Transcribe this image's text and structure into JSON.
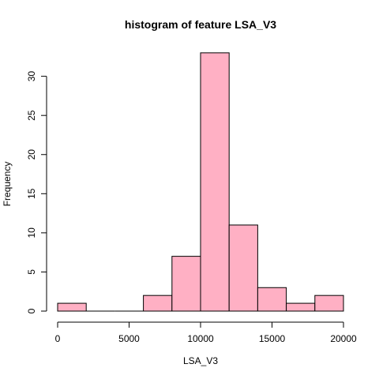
{
  "chart_data": {
    "type": "bar",
    "title": "histogram of feature LSA_V3",
    "xlabel": "LSA_V3",
    "ylabel": "Frequency",
    "bins": [
      {
        "start": 0,
        "end": 2000,
        "count": 1
      },
      {
        "start": 2000,
        "end": 4000,
        "count": 0
      },
      {
        "start": 4000,
        "end": 6000,
        "count": 0
      },
      {
        "start": 6000,
        "end": 8000,
        "count": 2
      },
      {
        "start": 8000,
        "end": 10000,
        "count": 7
      },
      {
        "start": 10000,
        "end": 12000,
        "count": 33
      },
      {
        "start": 12000,
        "end": 14000,
        "count": 11
      },
      {
        "start": 14000,
        "end": 16000,
        "count": 3
      },
      {
        "start": 16000,
        "end": 18000,
        "count": 1
      },
      {
        "start": 18000,
        "end": 20000,
        "count": 2
      }
    ],
    "xlim": [
      0,
      20000
    ],
    "ylim": [
      0,
      34.3
    ],
    "xticks": [
      0,
      5000,
      10000,
      15000,
      20000
    ],
    "yticks": [
      0,
      5,
      10,
      15,
      20,
      25,
      30
    ],
    "bar_color": "#FFB0C4",
    "grid": false,
    "legend": "none"
  }
}
